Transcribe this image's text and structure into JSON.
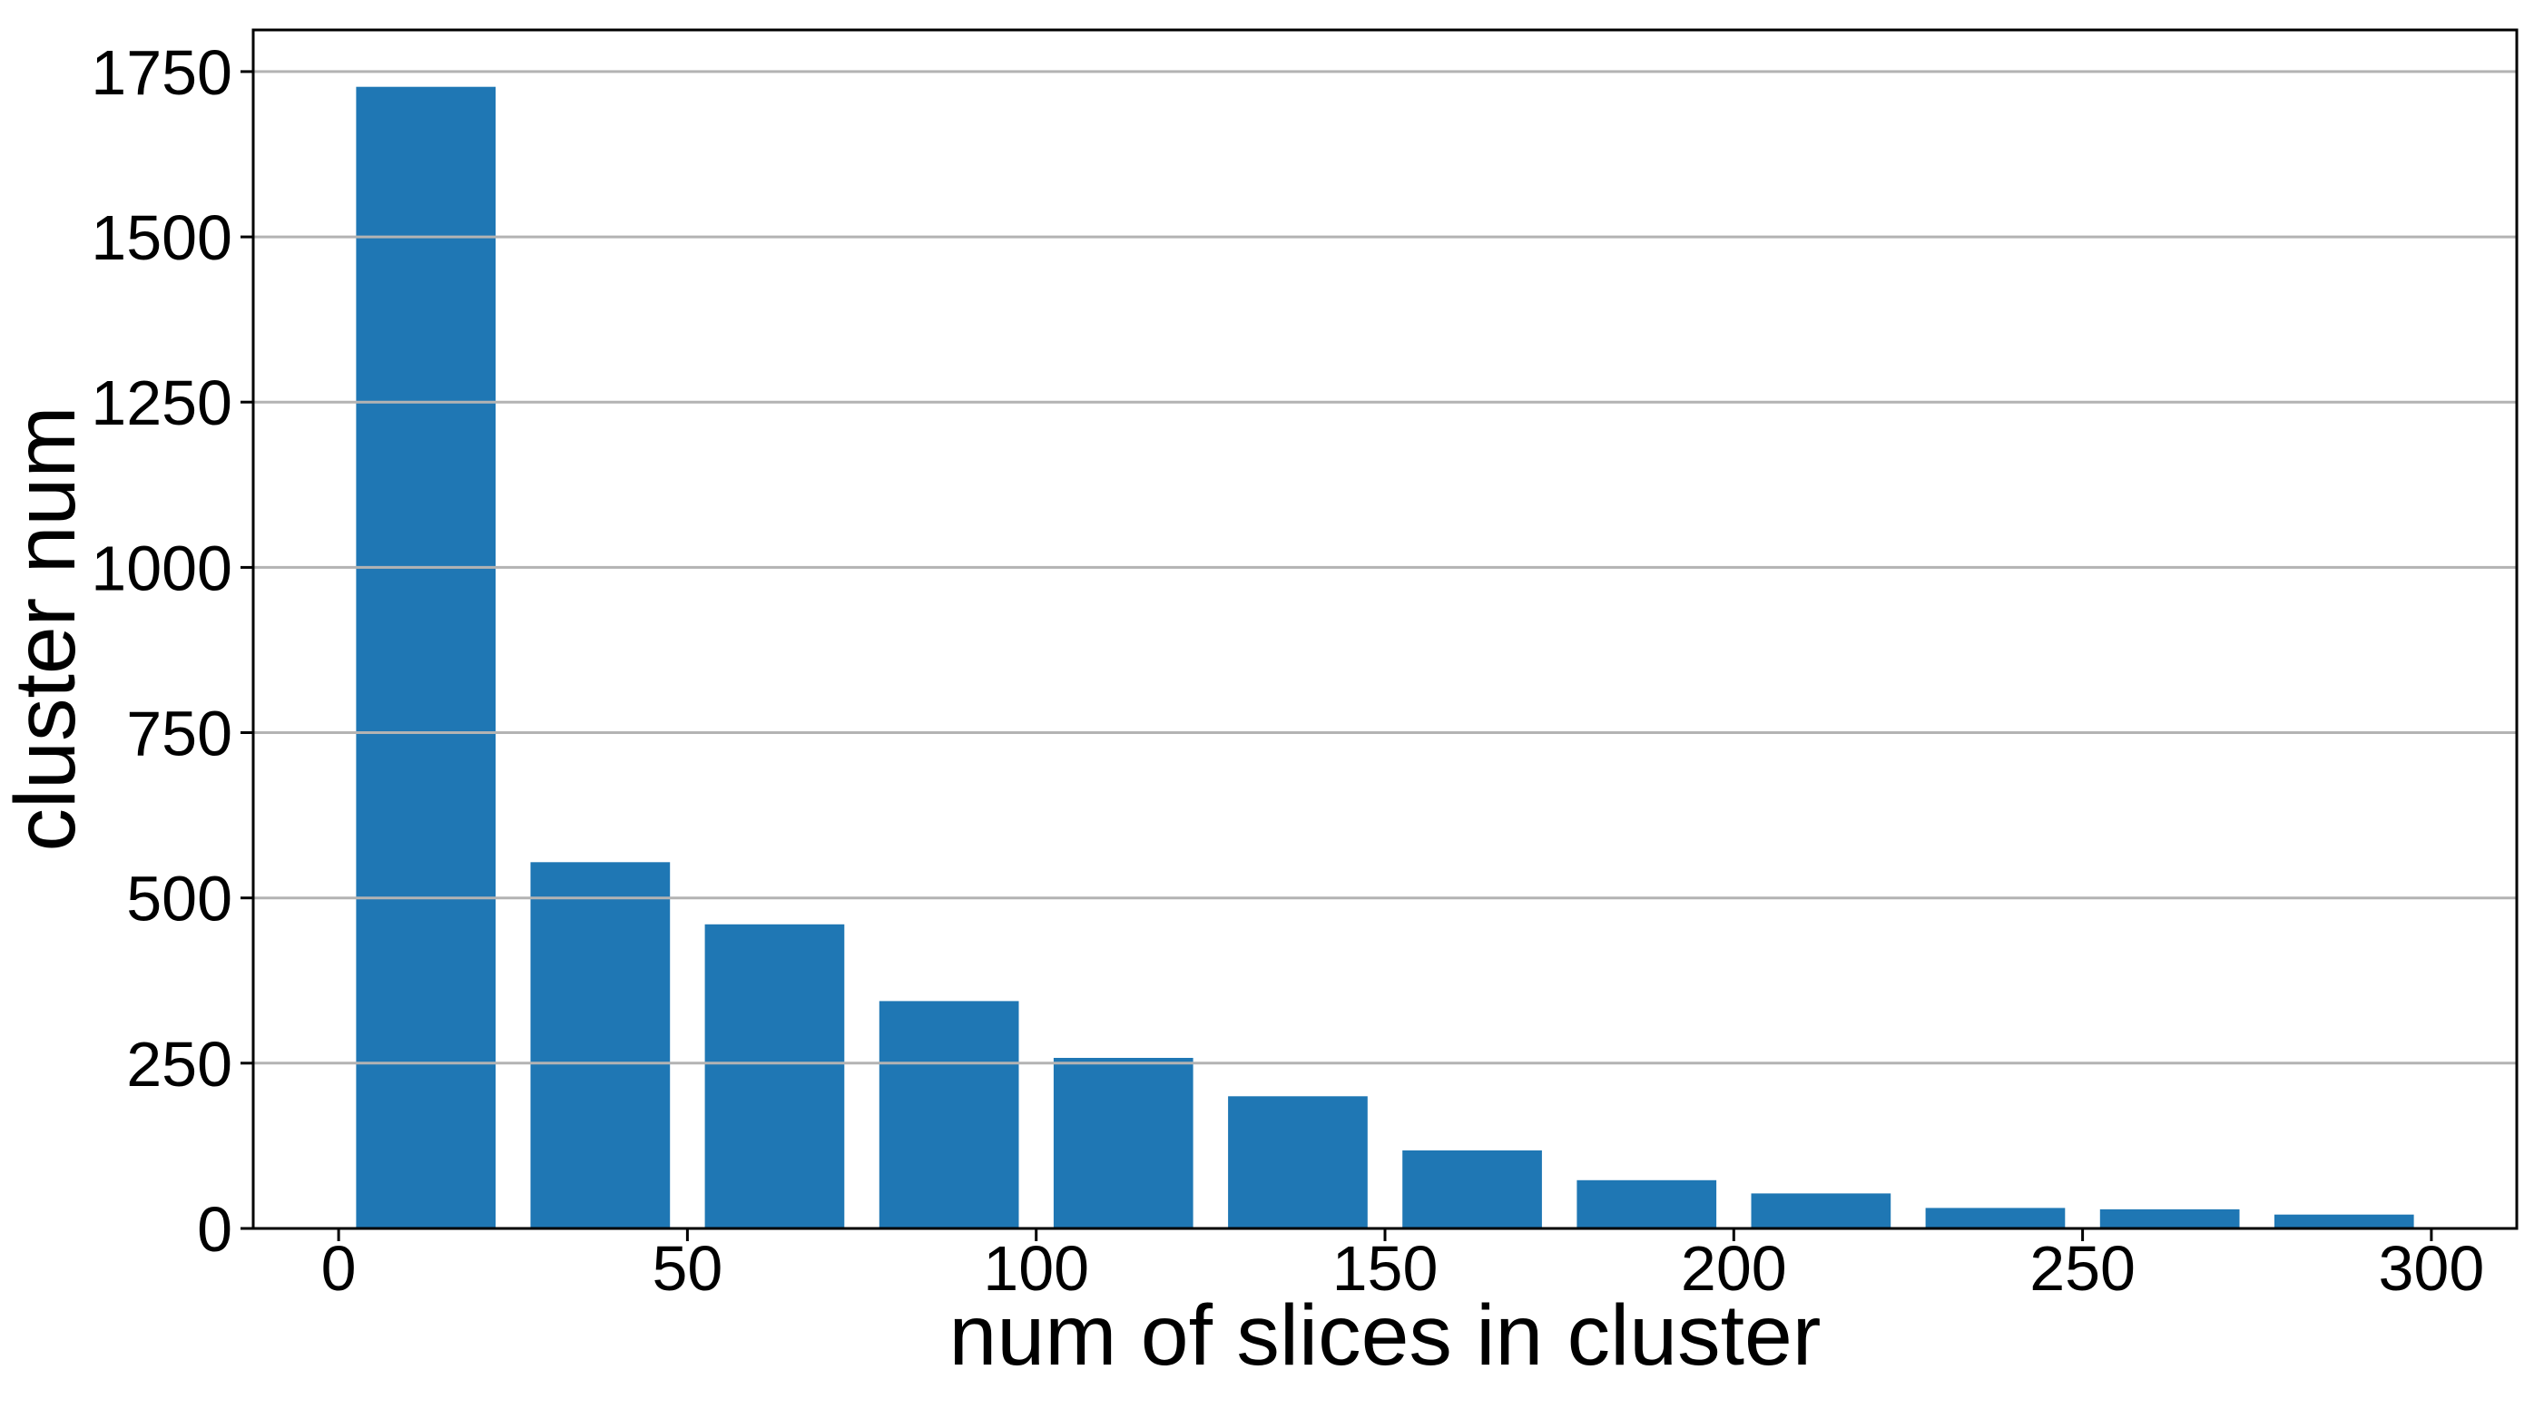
{
  "chart_data": {
    "type": "bar",
    "subtype": "histogram",
    "title": "",
    "xlabel": "num of slices in cluster",
    "ylabel": "cluster num",
    "bin_edges": [
      0,
      25,
      50,
      75,
      100,
      125,
      150,
      175,
      200,
      225,
      250,
      275,
      300
    ],
    "bin_centers": [
      12.5,
      37.5,
      62.5,
      87.5,
      112.5,
      137.5,
      162.5,
      187.5,
      212.5,
      237.5,
      262.5,
      287.5
    ],
    "counts": [
      1727,
      554,
      460,
      344,
      258,
      200,
      118,
      73,
      53,
      31,
      29,
      21
    ],
    "bar_rel_width": 0.8,
    "x_ticks": [
      0,
      50,
      100,
      150,
      200,
      250,
      300
    ],
    "y_ticks": [
      0,
      250,
      500,
      750,
      1000,
      1250,
      1500,
      1750
    ],
    "xlim": [
      -12.25,
      312.25
    ],
    "ylim": [
      0,
      1813
    ],
    "grid": "horizontal",
    "grid_over_bars": true,
    "legend": null,
    "colors": {
      "bar": "#1f77b4",
      "grid": "#b3b3b3",
      "axis": "#000000",
      "text": "#000000",
      "background": "#ffffff"
    }
  }
}
